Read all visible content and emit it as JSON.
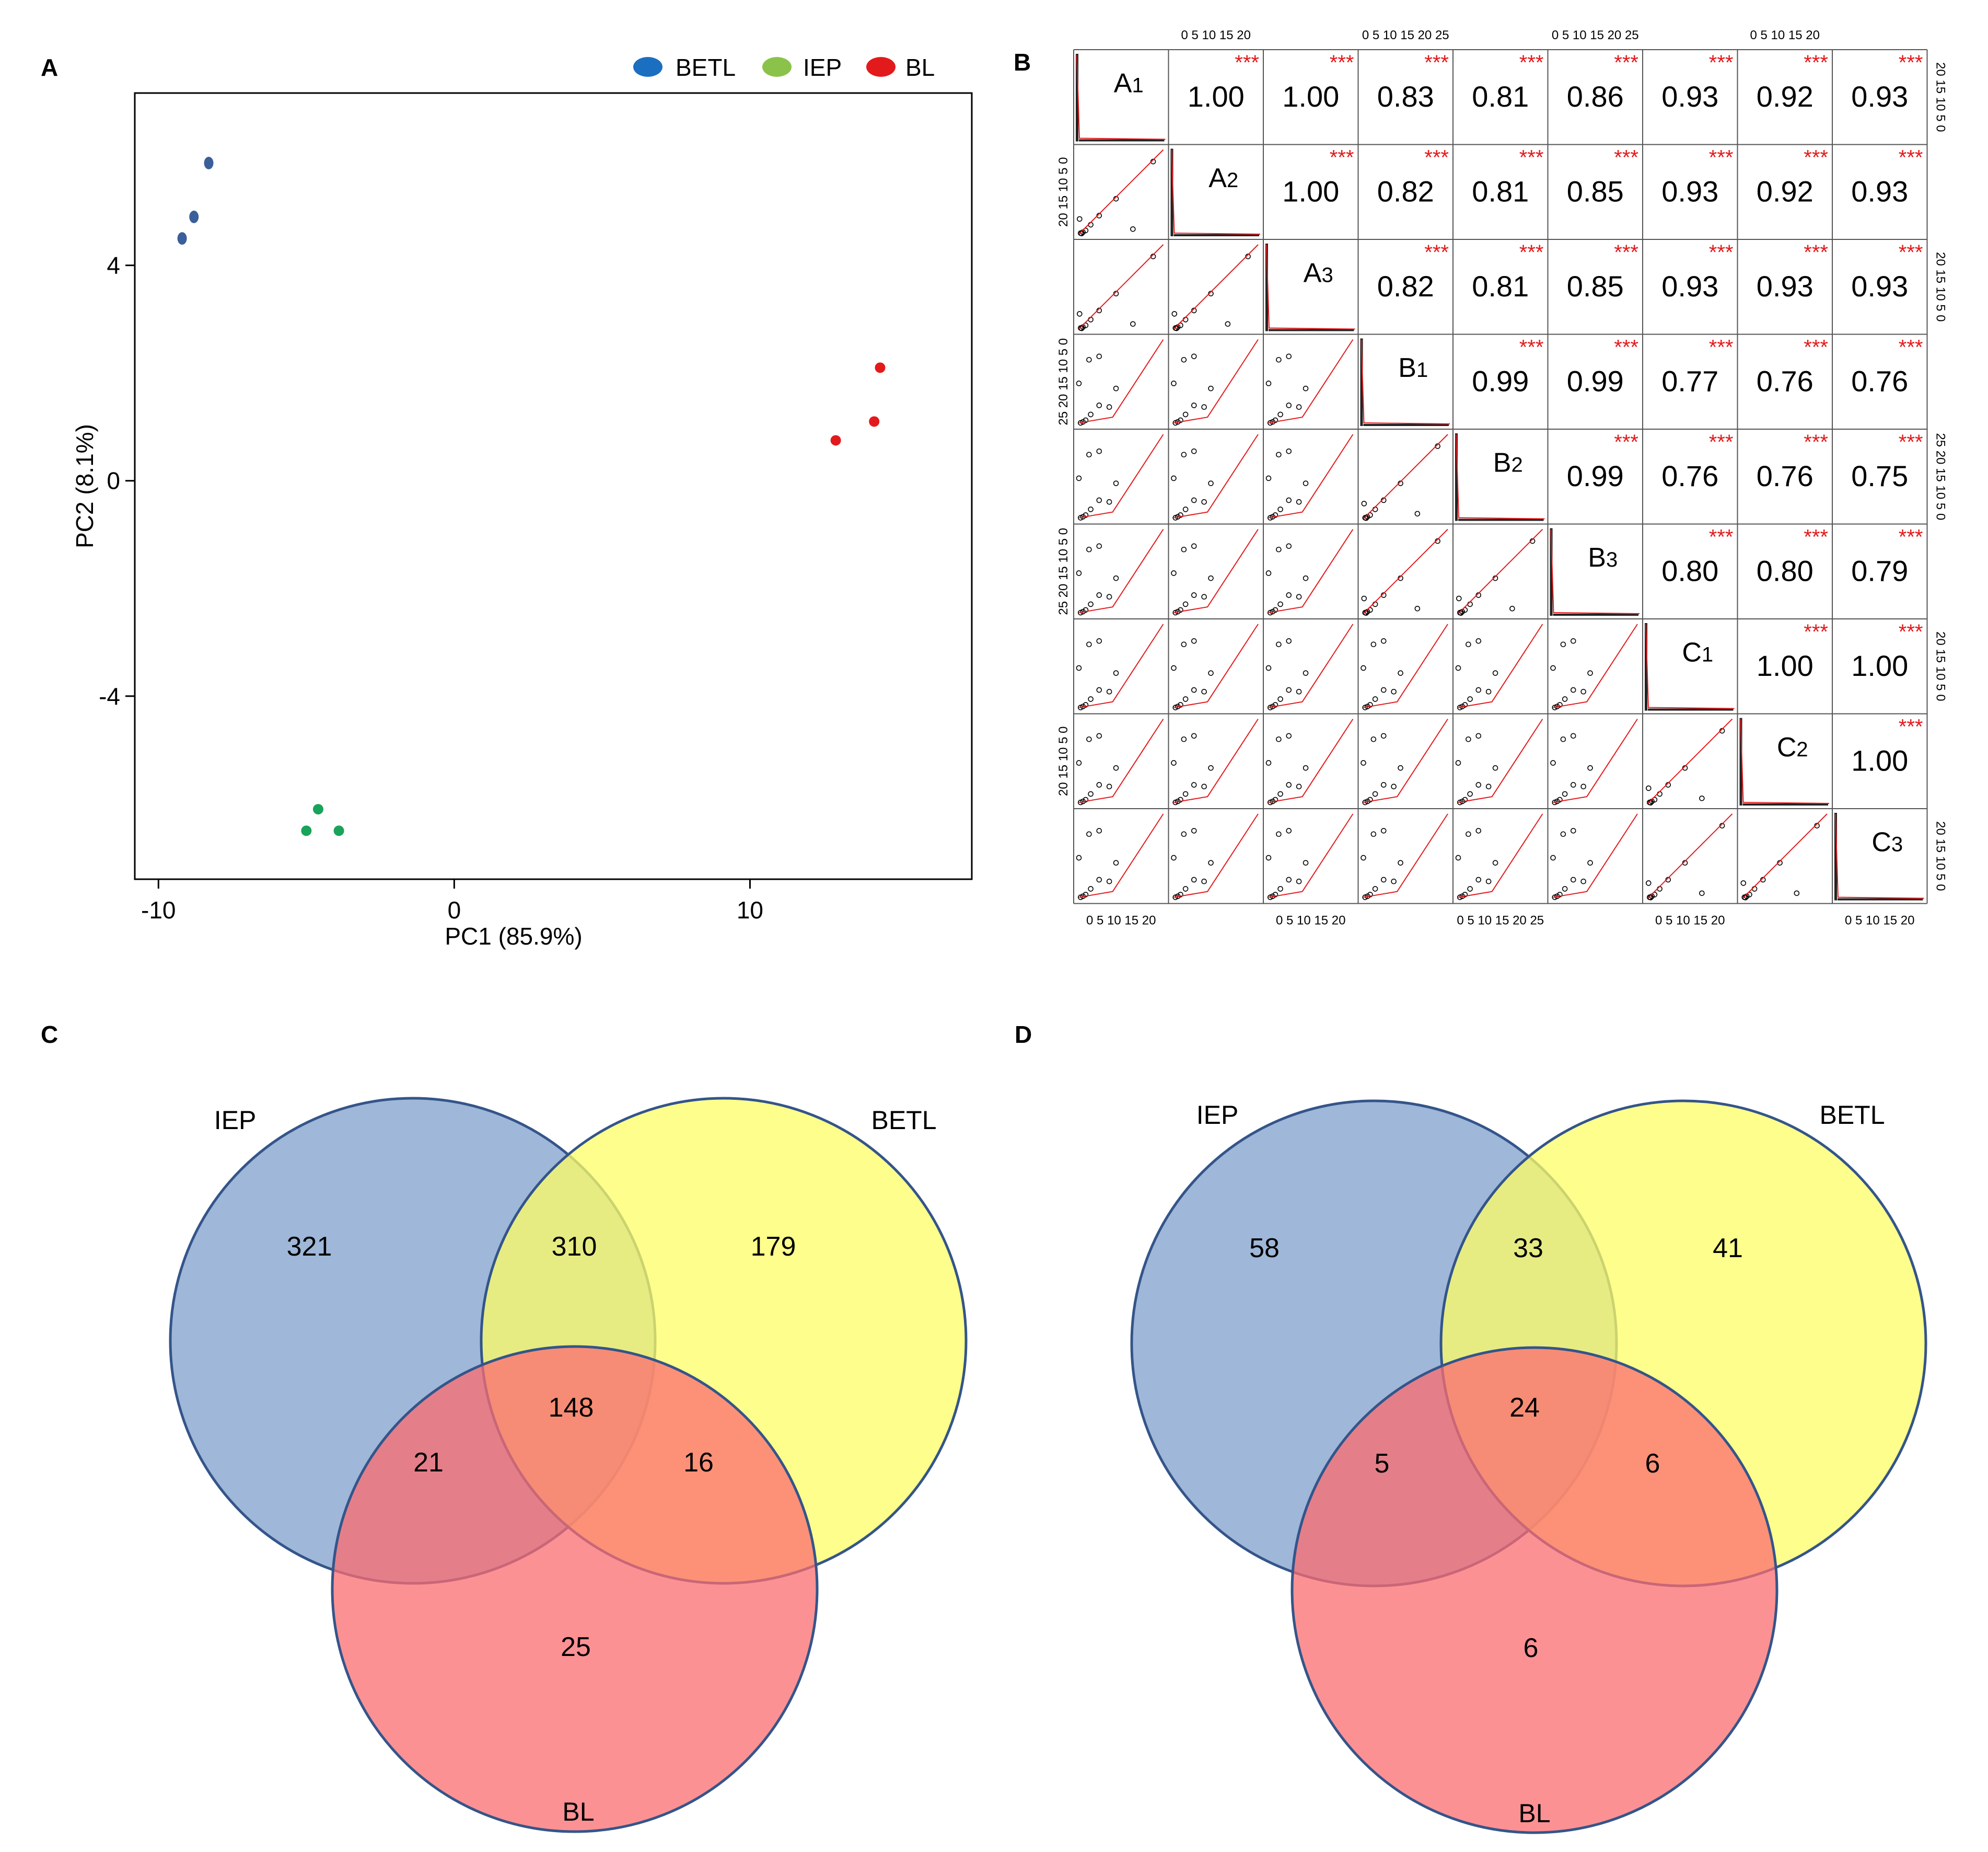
{
  "panels": [
    {
      "letter": "A"
    },
    {
      "letter": "B"
    },
    {
      "letter": "C"
    },
    {
      "letter": "D"
    }
  ],
  "chart_data": [
    {
      "panel": "A",
      "type": "scatter",
      "title": "",
      "xlabel": "PC1 (85.9%)",
      "ylabel": "PC2 (8.1%)",
      "xlim": [
        -10.8,
        17.5
      ],
      "ylim": [
        -7.4,
        7.2
      ],
      "xticks": [
        -10,
        0,
        10
      ],
      "yticks": [
        -4,
        0,
        4
      ],
      "grid": false,
      "legend_position": "top-right",
      "series": [
        {
          "name": "BETL",
          "color": "#1b6fc0",
          "marker_color": "#3a5f9a",
          "points": [
            [
              -8.3,
              5.9
            ],
            [
              -8.8,
              4.9
            ],
            [
              -9.2,
              4.5
            ]
          ]
        },
        {
          "name": "IEP",
          "color": "#8bc34a",
          "marker_color": "#1aa35a",
          "points": [
            [
              -4.6,
              -6.1
            ],
            [
              -5.0,
              -6.5
            ],
            [
              -3.9,
              -6.5
            ]
          ]
        },
        {
          "name": "BL",
          "color": "#e31a1c",
          "marker_color": "#e31a1c",
          "points": [
            [
              14.4,
              2.1
            ],
            [
              14.2,
              1.1
            ],
            [
              12.9,
              0.75
            ]
          ]
        }
      ]
    },
    {
      "panel": "B",
      "type": "scatter-matrix",
      "samples": [
        "A1",
        "A2",
        "A3",
        "B1",
        "B2",
        "B3",
        "C1",
        "C2",
        "C3"
      ],
      "significance": "***",
      "correlations": [
        [
          "",
          "1.00",
          "1.00",
          "0.83",
          "0.81",
          "0.86",
          "0.93",
          "0.92",
          "0.93"
        ],
        [
          "",
          "",
          "1.00",
          "0.82",
          "0.81",
          "0.85",
          "0.93",
          "0.92",
          "0.93"
        ],
        [
          "",
          "",
          "",
          "0.82",
          "0.81",
          "0.85",
          "0.93",
          "0.93",
          "0.93"
        ],
        [
          "",
          "",
          "",
          "",
          "0.99",
          "0.99",
          "0.77",
          "0.76",
          "0.76"
        ],
        [
          "",
          "",
          "",
          "",
          "",
          "0.99",
          "0.76",
          "0.76",
          "0.75"
        ],
        [
          "",
          "",
          "",
          "",
          "",
          "",
          "0.80",
          "0.80",
          "0.79"
        ],
        [
          "",
          "",
          "",
          "",
          "",
          "",
          "",
          "1.00",
          "1.00"
        ],
        [
          "",
          "",
          "",
          "",
          "",
          "",
          "",
          "",
          "1.00"
        ],
        [
          "",
          "",
          "",
          "",
          "",
          "",
          "",
          "",
          ""
        ]
      ],
      "top_axes": [
        {
          "col": 1,
          "ticks": "0  5 10 15 20"
        },
        {
          "col": 3,
          "ticks": "0  5 10 15 20 25"
        },
        {
          "col": 5,
          "ticks": "0  5 10 15 20 25"
        },
        {
          "col": 7,
          "ticks": "0  5 10 15 20"
        }
      ],
      "bottom_axes": [
        {
          "col": 0,
          "ticks": "0  5 10 15 20"
        },
        {
          "col": 2,
          "ticks": "0  5 10 15 20"
        },
        {
          "col": 4,
          "ticks": "0  5 10 15 20 25"
        },
        {
          "col": 6,
          "ticks": "0  5 10 15 20"
        },
        {
          "col": 8,
          "ticks": "0  5 10 15 20"
        }
      ],
      "left_axes": [
        {
          "row": 1,
          "ticks": "20 15 10 5 0"
        },
        {
          "row": 3,
          "ticks": "25 20 15 10 5 0"
        },
        {
          "row": 5,
          "ticks": "25 20 15 10 5 0"
        },
        {
          "row": 7,
          "ticks": "20 15 10 5 0"
        }
      ],
      "right_axes": [
        {
          "row": 0,
          "ticks": "20 15 10 5 0"
        },
        {
          "row": 2,
          "ticks": "20 15 10 5 0"
        },
        {
          "row": 4,
          "ticks": "25 20 15 10 5 0"
        },
        {
          "row": 6,
          "ticks": "20 15 10 5 0"
        },
        {
          "row": 8,
          "ticks": "20 15 10 5 0"
        }
      ],
      "scatter_pattern": [
        [
          0.5,
          0.3
        ],
        [
          1.2,
          0.6
        ],
        [
          2.0,
          1.1
        ],
        [
          3.5,
          2.8
        ],
        [
          6.0,
          5.5
        ],
        [
          11.0,
          10.5
        ],
        [
          0.2,
          4.5
        ],
        [
          0.8,
          0.2
        ],
        [
          16.0,
          1.5
        ],
        [
          22.0,
          21.5
        ]
      ]
    },
    {
      "panel": "C",
      "type": "venn",
      "sets": [
        {
          "name": "IEP",
          "color": "#7f9fcb"
        },
        {
          "name": "BETL",
          "color": "#fefe66"
        },
        {
          "name": "BL",
          "color": "#fb6c70"
        }
      ],
      "regions": {
        "IEP_only": 321,
        "IEP_BETL": 310,
        "BETL_only": 179,
        "IEP_BL": 21,
        "all": 148,
        "BETL_BL": 16,
        "BL_only": 25
      }
    },
    {
      "panel": "D",
      "type": "venn",
      "sets": [
        {
          "name": "IEP",
          "color": "#7f9fcb"
        },
        {
          "name": "BETL",
          "color": "#fefe66"
        },
        {
          "name": "BL",
          "color": "#fb6c70"
        }
      ],
      "regions": {
        "IEP_only": 58,
        "IEP_BETL": 33,
        "BETL_only": 41,
        "IEP_BL": 5,
        "all": 24,
        "BETL_BL": 6,
        "BL_only": 6
      }
    }
  ]
}
